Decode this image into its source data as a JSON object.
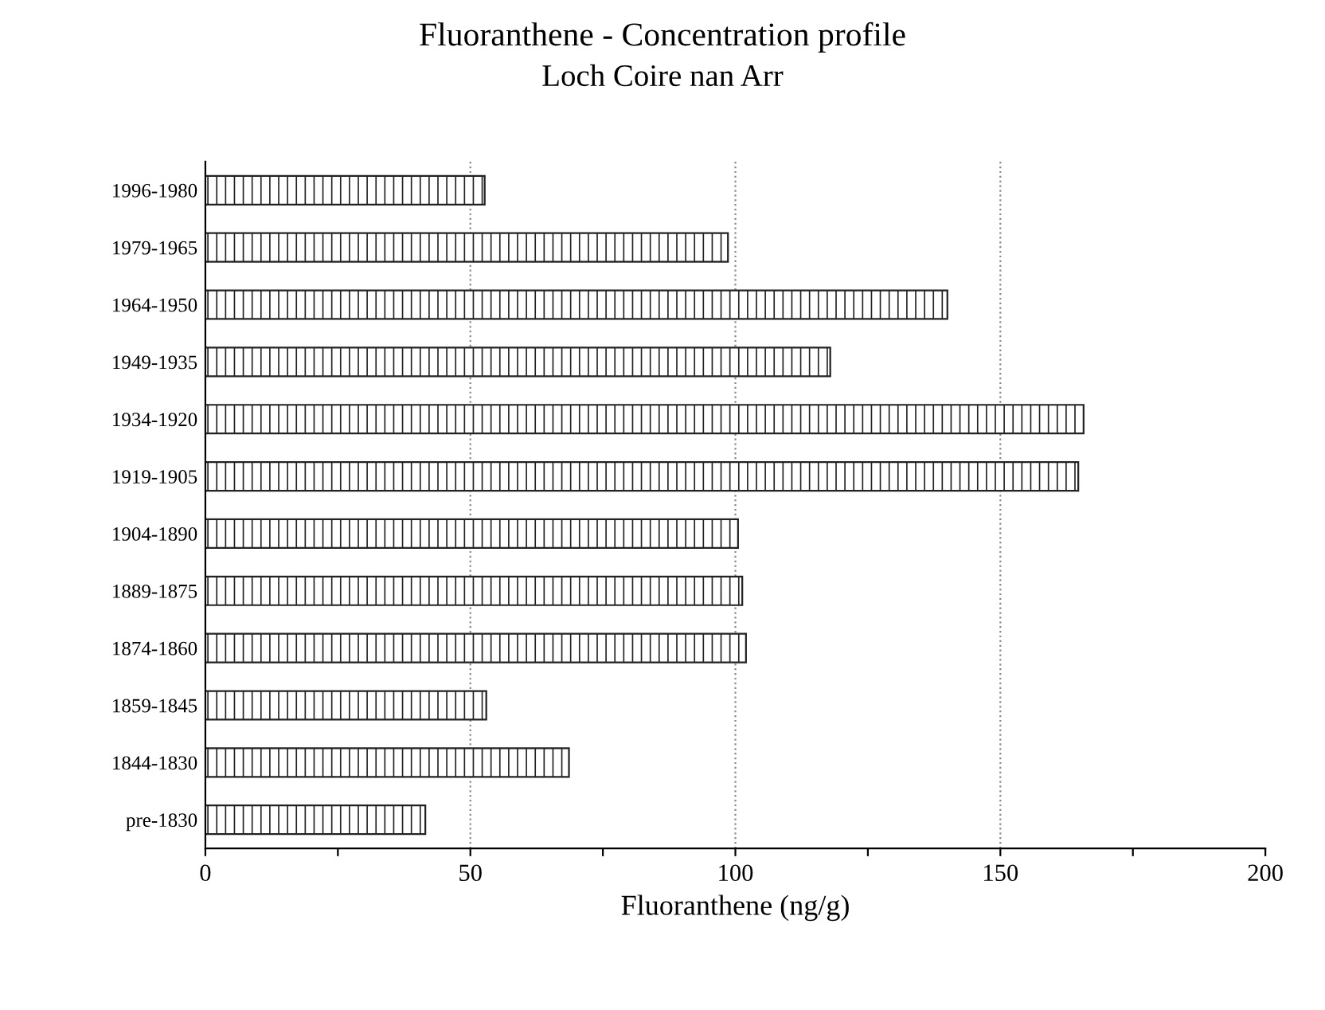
{
  "chart_data": {
    "type": "bar",
    "orientation": "horizontal",
    "title": "Fluoranthene - Concentration profile",
    "subtitle": "Loch Coire nan Arr",
    "xlabel": "Fluoranthene (ng/g)",
    "categories": [
      "1996-1980",
      "1979-1965",
      "1964-1950",
      "1949-1935",
      "1934-1920",
      "1919-1905",
      "1904-1890",
      "1889-1875",
      "1874-1860",
      "1859-1845",
      "1844-1830",
      "pre-1830"
    ],
    "values": [
      52.7,
      98.6,
      140,
      117.9,
      165.7,
      164.7,
      100.5,
      101.3,
      102,
      53,
      68.6,
      41.5
    ],
    "color": "#222222",
    "xlim": [
      0,
      200
    ],
    "xticks": [
      0,
      {
        "value": 25,
        "label": null
      },
      50,
      {
        "value": 75,
        "label": null
      },
      100,
      {
        "value": 125,
        "label": null
      },
      150,
      {
        "value": 175,
        "label": null
      },
      200
    ],
    "grid": "x",
    "legend": false
  }
}
